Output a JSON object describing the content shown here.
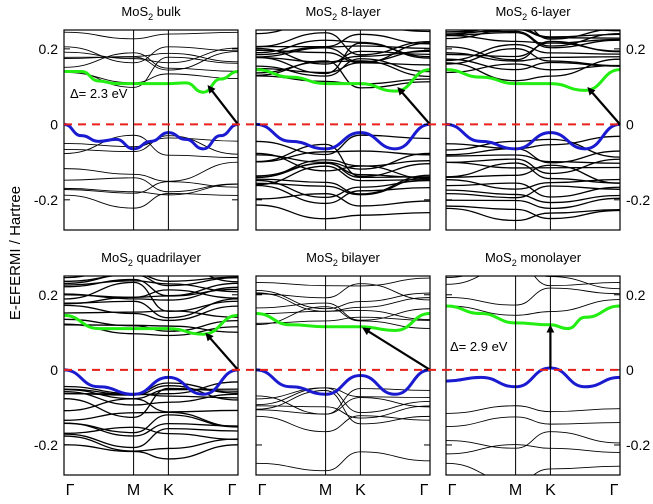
{
  "chart_data": {
    "type": "line",
    "title": "",
    "ylabel": "E-EFERMI / Hartree",
    "xlabel": "",
    "ylim": [
      -0.28,
      0.25
    ],
    "x": [
      0,
      1,
      1.5,
      2.5
    ],
    "x_ticks": [
      "Γ",
      "M",
      "K",
      "Γ"
    ],
    "y_ticks": [
      "0.2",
      "0",
      "-0.2"
    ],
    "y_tick_values": [
      0.2,
      0,
      -0.2
    ],
    "fermi_level": 0,
    "colors": {
      "conduction_band_min": "#22ee11",
      "valence_band_max": "#1a1ad0",
      "fermi_line": "#e8201a",
      "bands": "#000000"
    },
    "panels": [
      {
        "title_prefix": "MoS",
        "title_sub": "2",
        "title_suffix": " bulk",
        "series": [
          {
            "name": "lowest conduction band",
            "x": [
              0,
              0.25,
              0.5,
              0.75,
              1,
              1.25,
              1.5,
              1.75,
              2,
              2.25,
              2.5
            ],
            "y": [
              0.14,
              0.14,
              0.115,
              0.108,
              0.108,
              0.108,
              0.108,
              0.11,
              0.085,
              0.12,
              0.14
            ]
          },
          {
            "name": "highest valence band",
            "x": [
              0,
              0.25,
              0.5,
              0.75,
              1,
              1.25,
              1.5,
              1.75,
              2,
              2.25,
              2.5
            ],
            "y": [
              0,
              -0.03,
              -0.045,
              -0.04,
              -0.065,
              -0.045,
              -0.022,
              -0.04,
              -0.065,
              -0.03,
              0
            ]
          }
        ],
        "gap_label": "Δ= 2.3 eV",
        "transition": {
          "from_x": 2.5,
          "from_y": 0,
          "to_x": 2.08,
          "to_y": 0.1
        }
      },
      {
        "title_prefix": "MoS",
        "title_sub": "2",
        "title_suffix": " 8-layer",
        "series": [
          {
            "name": "lowest conduction band",
            "x": [
              0,
              0.5,
              1,
              1.5,
              2,
              2.5
            ],
            "y": [
              0.145,
              0.125,
              0.108,
              0.108,
              0.088,
              0.145
            ]
          },
          {
            "name": "highest valence band",
            "x": [
              0,
              0.5,
              1,
              1.5,
              2,
              2.5
            ],
            "y": [
              0,
              -0.045,
              -0.065,
              -0.022,
              -0.065,
              0
            ]
          }
        ],
        "gap_label": "",
        "transition": {
          "from_x": 2.5,
          "from_y": 0,
          "to_x": 2.05,
          "to_y": 0.095
        }
      },
      {
        "title_prefix": "MoS",
        "title_sub": "2",
        "title_suffix": " 6-layer",
        "series": [
          {
            "name": "lowest conduction band",
            "x": [
              0,
              0.5,
              1,
              1.5,
              2,
              2.5
            ],
            "y": [
              0.145,
              0.125,
              0.108,
              0.108,
              0.09,
              0.145
            ]
          },
          {
            "name": "highest valence band",
            "x": [
              0,
              0.5,
              1,
              1.5,
              2,
              2.5
            ],
            "y": [
              0,
              -0.045,
              -0.065,
              -0.022,
              -0.065,
              0
            ]
          }
        ],
        "gap_label": "",
        "transition": {
          "from_x": 2.5,
          "from_y": 0,
          "to_x": 2.05,
          "to_y": 0.095
        }
      },
      {
        "title_prefix": "MoS",
        "title_sub": "2",
        "title_suffix": " quadrilayer",
        "series": [
          {
            "name": "lowest conduction band",
            "x": [
              0,
              0.5,
              1,
              1.5,
              2,
              2.5
            ],
            "y": [
              0.145,
              0.11,
              0.11,
              0.11,
              0.095,
              0.145
            ]
          },
          {
            "name": "highest valence band",
            "x": [
              0,
              0.5,
              1,
              1.5,
              2,
              2.5
            ],
            "y": [
              0,
              -0.045,
              -0.065,
              -0.02,
              -0.065,
              0
            ]
          }
        ],
        "gap_label": "",
        "transition": {
          "from_x": 2.5,
          "from_y": 0,
          "to_x": 2.05,
          "to_y": 0.095
        }
      },
      {
        "title_prefix": "MoS",
        "title_sub": "2",
        "title_suffix": " bilayer",
        "series": [
          {
            "name": "lowest conduction band",
            "x": [
              0,
              0.5,
              1,
              1.5,
              2,
              2.5
            ],
            "y": [
              0.15,
              0.12,
              0.115,
              0.115,
              0.105,
              0.15
            ]
          },
          {
            "name": "highest valence band",
            "x": [
              0,
              0.5,
              1,
              1.5,
              2,
              2.5
            ],
            "y": [
              0,
              -0.045,
              -0.065,
              -0.015,
              -0.065,
              0
            ]
          }
        ],
        "gap_label": "",
        "transition": {
          "from_x": 2.5,
          "from_y": 0,
          "to_x": 1.55,
          "to_y": 0.11
        }
      },
      {
        "title_prefix": "MoS",
        "title_sub": "2",
        "title_suffix": " monolayer",
        "series": [
          {
            "name": "lowest conduction band",
            "x": [
              0,
              0.5,
              1,
              1.5,
              1.75,
              2,
              2.5
            ],
            "y": [
              0.17,
              0.15,
              0.125,
              0.12,
              0.11,
              0.14,
              0.17
            ]
          },
          {
            "name": "highest valence band",
            "x": [
              0,
              0.5,
              1,
              1.5,
              2,
              2.5
            ],
            "y": [
              -0.03,
              -0.02,
              -0.045,
              0.005,
              -0.045,
              -0.02
            ]
          }
        ],
        "gap_label": "Δ= 2.9 eV",
        "transition": {
          "from_x": 1.5,
          "from_y": 0.005,
          "to_x": 1.5,
          "to_y": 0.115
        }
      }
    ]
  }
}
